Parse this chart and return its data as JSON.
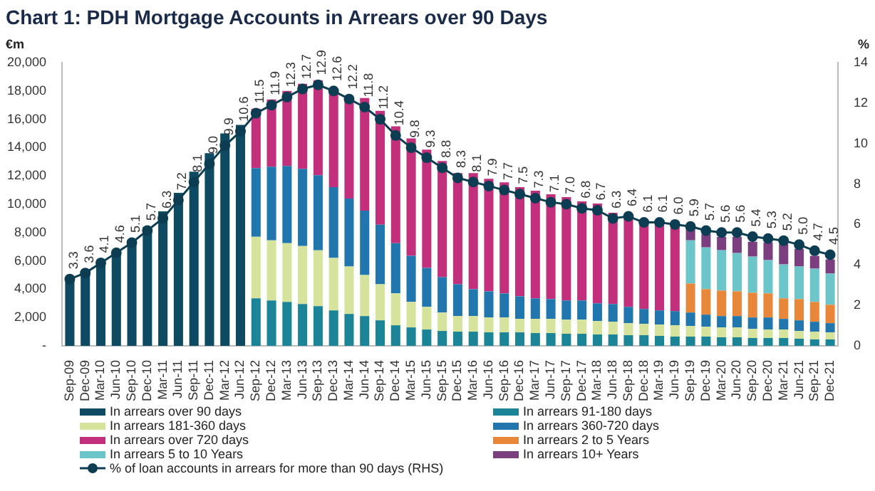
{
  "chart_data": {
    "type": "bar",
    "stacked": true,
    "title": "Chart 1: PDH Mortgage Accounts in Arrears over 90 Days",
    "ylabel": "€m",
    "y2label": "%",
    "categories": [
      "Sep-09",
      "Dec-09",
      "Mar-10",
      "Jun-10",
      "Sep-10",
      "Dec-10",
      "Mar-11",
      "Jun-11",
      "Sep-11",
      "Dec-11",
      "Mar-12",
      "Jun-12",
      "Sep-12",
      "Dec-12",
      "Mar-13",
      "Jun-13",
      "Sep-13",
      "Dec-13",
      "Mar-14",
      "Jun-14",
      "Sep-14",
      "Dec-14",
      "Mar-15",
      "Jun-15",
      "Sep-15",
      "Dec-15",
      "Mar-16",
      "Jun-16",
      "Sep-16",
      "Dec-16",
      "Mar-17",
      "Jun-17",
      "Sep-17",
      "Dec-17",
      "Mar-18",
      "Jun-18",
      "Sep-18",
      "Dec-18",
      "Mar-19",
      "Jun-19",
      "Sep-19",
      "Dec-19",
      "Mar-20",
      "Jun-20",
      "Sep-20",
      "Dec-20",
      "Mar-21",
      "Jun-21",
      "Sep-21",
      "Dec-21"
    ],
    "ylim": [
      0,
      20000
    ],
    "yticks": [
      {
        "value": 0,
        "label": "-"
      },
      {
        "value": 2000,
        "label": "2,000"
      },
      {
        "value": 4000,
        "label": "4,000"
      },
      {
        "value": 6000,
        "label": "6,000"
      },
      {
        "value": 8000,
        "label": "8,000"
      },
      {
        "value": 10000,
        "label": "10,000"
      },
      {
        "value": 12000,
        "label": "12,000"
      },
      {
        "value": 14000,
        "label": "14,000"
      },
      {
        "value": 16000,
        "label": "16,000"
      },
      {
        "value": 18000,
        "label": "18,000"
      },
      {
        "value": 20000,
        "label": "20,000"
      }
    ],
    "y2lim": [
      0,
      14
    ],
    "y2ticks": [
      0,
      2,
      4,
      6,
      8,
      10,
      12,
      14
    ],
    "grid": false,
    "legend": "bottom",
    "series": [
      {
        "name": "In arrears over 90 days",
        "color": "#0e4a62",
        "values": [
          4800,
          5300,
          6000,
          6700,
          7500,
          8400,
          9500,
          10800,
          12300,
          13600,
          15000,
          15600,
          null,
          null,
          null,
          null,
          null,
          null,
          null,
          null,
          null,
          null,
          null,
          null,
          null,
          null,
          null,
          null,
          null,
          null,
          null,
          null,
          null,
          null,
          null,
          null,
          null,
          null,
          null,
          null,
          null,
          null,
          null,
          null,
          null,
          null,
          null,
          null,
          null,
          null
        ]
      },
      {
        "name": "In arrears 91-180 days",
        "color": "#1b8496",
        "values": [
          null,
          null,
          null,
          null,
          null,
          null,
          null,
          null,
          null,
          null,
          null,
          null,
          3350,
          3200,
          3100,
          2950,
          2800,
          2500,
          2250,
          2100,
          1800,
          1450,
          1300,
          1150,
          1050,
          1000,
          1000,
          950,
          950,
          950,
          900,
          900,
          850,
          850,
          800,
          800,
          750,
          750,
          700,
          650,
          650,
          650,
          600,
          600,
          550,
          550,
          550,
          500,
          450,
          450
        ]
      },
      {
        "name": "In arrears 181-360 days",
        "color": "#d6e39c",
        "values": [
          null,
          null,
          null,
          null,
          null,
          null,
          null,
          null,
          null,
          null,
          null,
          null,
          4350,
          4250,
          4150,
          4100,
          3950,
          3700,
          3350,
          2900,
          2550,
          2250,
          1800,
          1600,
          1300,
          1100,
          1100,
          1050,
          1050,
          950,
          1000,
          1000,
          1000,
          1000,
          950,
          900,
          850,
          800,
          800,
          800,
          750,
          700,
          700,
          700,
          650,
          600,
          600,
          550,
          550,
          500
        ]
      },
      {
        "name": "In arrears 360-720 days",
        "color": "#2176ae",
        "values": [
          null,
          null,
          null,
          null,
          null,
          null,
          null,
          null,
          null,
          null,
          null,
          null,
          4850,
          5200,
          5450,
          5450,
          5300,
          5000,
          4800,
          4550,
          4200,
          3550,
          3250,
          2750,
          2500,
          2250,
          1900,
          1850,
          1700,
          1600,
          1450,
          1400,
          1350,
          1350,
          1250,
          1250,
          1150,
          1050,
          1000,
          1000,
          950,
          850,
          800,
          800,
          800,
          850,
          750,
          750,
          700,
          650
        ]
      },
      {
        "name": "In arrears over 720 days",
        "color": "#c2307c",
        "values": [
          null,
          null,
          null,
          null,
          null,
          null,
          null,
          null,
          null,
          null,
          null,
          null,
          4200,
          4750,
          5300,
          6000,
          6700,
          6950,
          7000,
          7950,
          8050,
          8250,
          8300,
          8350,
          8200,
          7850,
          8200,
          7950,
          7850,
          7700,
          7600,
          7400,
          7300,
          7000,
          7050,
          6450,
          6450,
          6100,
          6050,
          6100,
          null,
          null,
          null,
          null,
          null,
          null,
          null,
          null,
          null,
          null
        ]
      },
      {
        "name": "In arrears 2 to 5 Years",
        "color": "#e8873a",
        "values": [
          null,
          null,
          null,
          null,
          null,
          null,
          null,
          null,
          null,
          null,
          null,
          null,
          null,
          null,
          null,
          null,
          null,
          null,
          null,
          null,
          null,
          null,
          null,
          null,
          null,
          null,
          null,
          null,
          null,
          null,
          null,
          null,
          null,
          null,
          null,
          null,
          null,
          null,
          null,
          null,
          2050,
          1800,
          1800,
          1750,
          1750,
          1700,
          1450,
          1500,
          1400,
          1300
        ]
      },
      {
        "name": "In arrears 5 to 10 Years",
        "color": "#6cc6c9",
        "values": [
          null,
          null,
          null,
          null,
          null,
          null,
          null,
          null,
          null,
          null,
          null,
          null,
          null,
          null,
          null,
          null,
          null,
          null,
          null,
          null,
          null,
          null,
          null,
          null,
          null,
          null,
          null,
          null,
          null,
          null,
          null,
          null,
          null,
          null,
          null,
          null,
          null,
          null,
          null,
          null,
          3050,
          2950,
          2850,
          2700,
          2550,
          2350,
          2400,
          2300,
          2350,
          2200
        ]
      },
      {
        "name": "In arrears 10+ Years",
        "color": "#7b3f80",
        "values": [
          null,
          null,
          null,
          null,
          null,
          null,
          null,
          null,
          null,
          null,
          null,
          null,
          null,
          null,
          null,
          null,
          null,
          null,
          null,
          null,
          null,
          null,
          null,
          null,
          null,
          null,
          null,
          null,
          null,
          null,
          null,
          null,
          null,
          null,
          null,
          null,
          null,
          null,
          null,
          null,
          1000,
          950,
          950,
          1150,
          1050,
          1250,
          1450,
          1250,
          900,
          1000
        ]
      },
      {
        "name": "% of loan accounts in arrears for more than 90 days (RHS)",
        "type": "line",
        "axis": "y2",
        "marker": "circle",
        "line_style": "solid",
        "color": "#0d3d52",
        "values": [
          3.3,
          3.6,
          4.1,
          4.6,
          5.1,
          5.7,
          6.3,
          7.2,
          8.1,
          9.0,
          9.9,
          10.6,
          11.5,
          11.9,
          12.3,
          12.7,
          12.9,
          12.6,
          12.2,
          11.8,
          11.2,
          10.4,
          9.8,
          9.3,
          8.8,
          8.3,
          8.1,
          7.9,
          7.7,
          7.5,
          7.3,
          7.1,
          7.0,
          6.8,
          6.7,
          6.3,
          6.4,
          6.1,
          6.1,
          6.0,
          5.9,
          5.7,
          5.6,
          5.6,
          5.4,
          5.3,
          5.2,
          5.0,
          4.7,
          4.5
        ],
        "value_labels": [
          "3.3",
          "3.6",
          "4.1",
          "4.6",
          "5.1",
          "5.7",
          "6.3",
          "7.2",
          "8.1",
          "9.0",
          "9.9",
          "10.6",
          "11.5",
          "11.9",
          "12.3",
          "12.7",
          "12.9",
          "12.6",
          "12.2",
          "11.8",
          "11.2",
          "10.4",
          "9.8",
          "9.3",
          "8.8",
          "8.3",
          "8.1",
          "7.9",
          "7.7",
          "7.5",
          "7.3",
          "7.1",
          "7.0",
          "6.8",
          "6.7",
          "6.3",
          "6.4",
          "6.1",
          "6.1",
          "6.0",
          "5.9",
          "5.7",
          "5.6",
          "5.6",
          "5.4",
          "5.3",
          "5.2",
          "5.0",
          "4.7",
          "4.5"
        ]
      }
    ]
  }
}
